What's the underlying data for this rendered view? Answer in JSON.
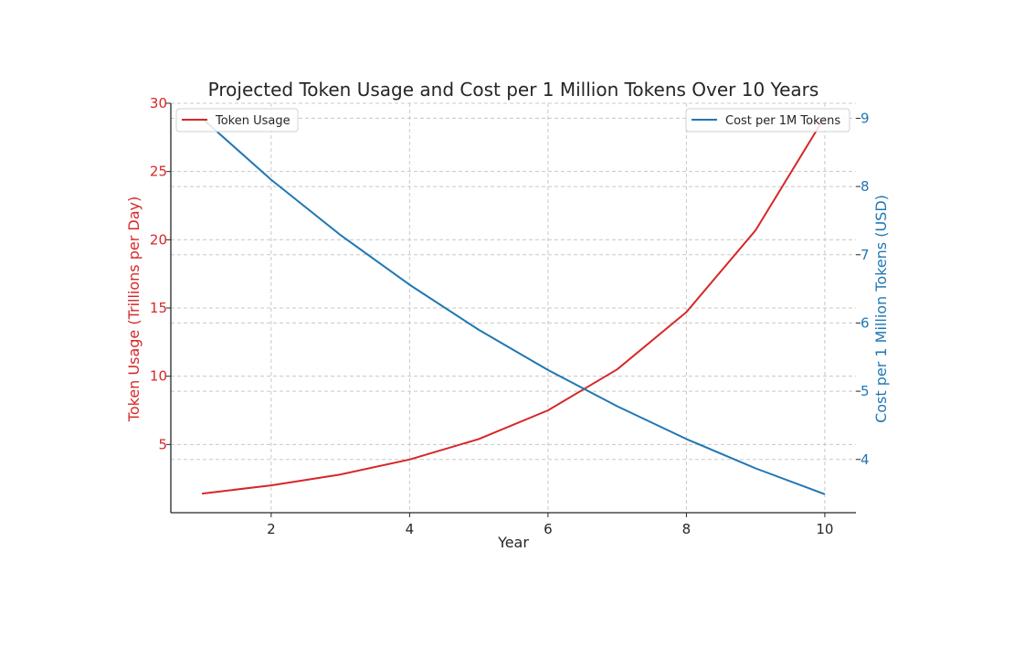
{
  "chart_data": {
    "type": "line",
    "title": "Projected Token Usage and Cost per 1 Million Tokens Over 10 Years",
    "xlabel": "Year",
    "x": [
      1,
      2,
      3,
      4,
      5,
      6,
      7,
      8,
      9,
      10
    ],
    "xlim": [
      0.55,
      10.45
    ],
    "xticks": [
      2,
      4,
      6,
      8,
      10
    ],
    "grid": true,
    "series": [
      {
        "name": "Token Usage",
        "axis": "left",
        "color": "#d62728",
        "values": [
          1.4,
          2.0,
          2.8,
          3.9,
          5.4,
          7.5,
          10.5,
          14.7,
          20.7,
          29.0
        ]
      },
      {
        "name": "Cost per 1M Tokens",
        "axis": "right",
        "color": "#1f77b4",
        "values": [
          9.0,
          8.1,
          7.29,
          6.56,
          5.9,
          5.31,
          4.78,
          4.3,
          3.87,
          3.49
        ]
      }
    ],
    "y_left": {
      "label": "Token Usage (Trillions per Day)",
      "color": "#d62728",
      "lim": [
        0,
        30
      ],
      "ticks": [
        5,
        10,
        15,
        20,
        25,
        30
      ]
    },
    "y_right": {
      "label": "Cost per 1 Million Tokens (USD)",
      "color": "#1f77b4",
      "lim": [
        3.22,
        9.22
      ],
      "ticks": [
        4,
        5,
        6,
        7,
        8,
        9
      ]
    },
    "legend_left": {
      "placement": "top-left",
      "label": "Token Usage"
    },
    "legend_right": {
      "placement": "top-right",
      "label": "Cost per 1M Tokens"
    }
  }
}
